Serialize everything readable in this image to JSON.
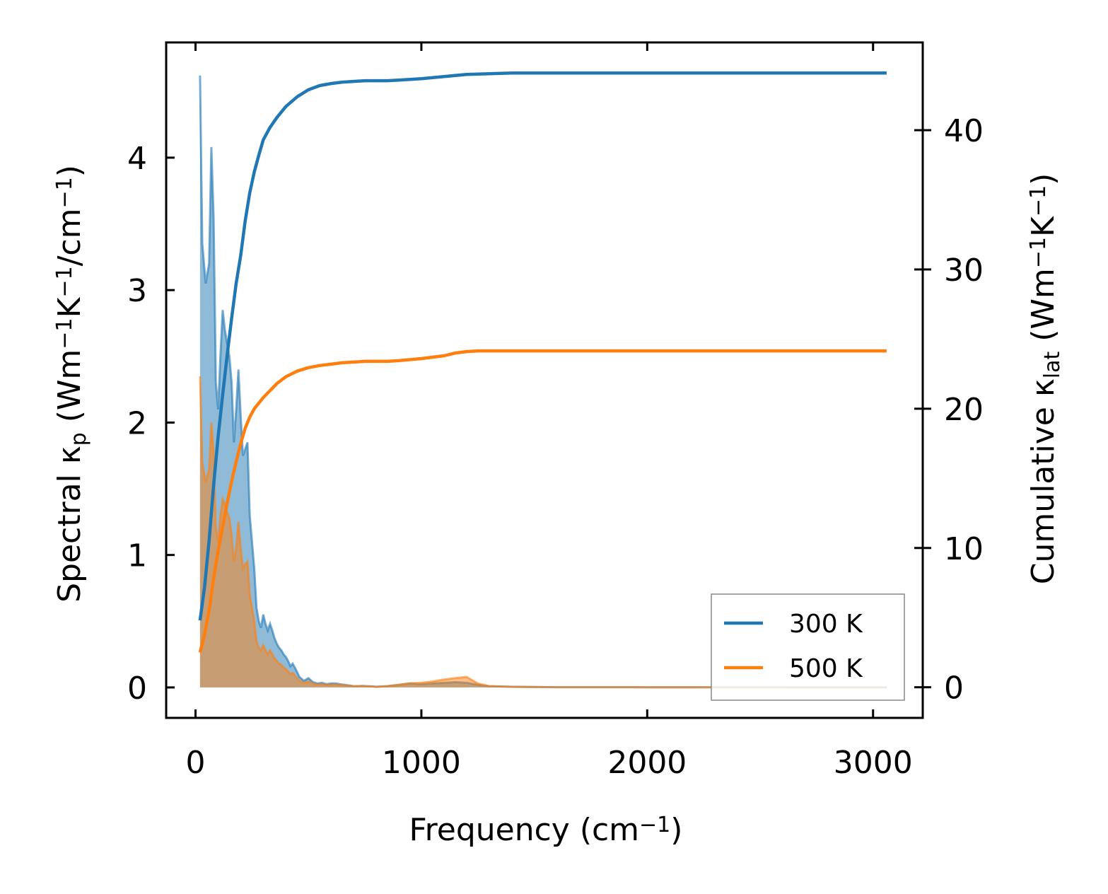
{
  "chart_data": {
    "type": "line",
    "xlabel": {
      "text": "Frequency (cm",
      "sup": "−1",
      "tail": ")"
    },
    "ylabel_left": {
      "parts": [
        {
          "t": "Spectral κ"
        },
        {
          "sub": "p"
        },
        {
          "t": " (Wm"
        },
        {
          "sup": "−1"
        },
        {
          "t": "K"
        },
        {
          "sup": "−1"
        },
        {
          "t": "/cm"
        },
        {
          "sup": "−1"
        },
        {
          "t": ")"
        }
      ]
    },
    "ylabel_right": {
      "parts": [
        {
          "t": "Cumulative κ"
        },
        {
          "sub": "lat"
        },
        {
          "t": " (Wm"
        },
        {
          "sup": "−1"
        },
        {
          "t": "K"
        },
        {
          "sup": "−1"
        },
        {
          "t": ")"
        }
      ]
    },
    "xlim": [
      -130,
      3220
    ],
    "ylim_left": [
      -0.23,
      4.87
    ],
    "ylim_right": [
      -2.2,
      46.3
    ],
    "xticks": [
      0,
      1000,
      2000,
      3000
    ],
    "xtick_labels": [
      "0",
      "1000",
      "2000",
      "3000"
    ],
    "yticks_left": [
      0,
      1,
      2,
      3,
      4
    ],
    "ytick_labels_left": [
      "0",
      "1",
      "2",
      "3",
      "4"
    ],
    "yticks_right": [
      0,
      10,
      20,
      30,
      40
    ],
    "ytick_labels_right": [
      "0",
      "10",
      "20",
      "30",
      "40"
    ],
    "legend": {
      "placement": "lower-right",
      "entries": [
        "300 K",
        "500 K"
      ]
    },
    "grid": false,
    "series": [
      {
        "name": "300 K",
        "color": "#1f77b4",
        "spectral": {
          "x": [
            20,
            30,
            45,
            60,
            70,
            80,
            90,
            100,
            110,
            120,
            130,
            140,
            150,
            160,
            170,
            180,
            190,
            200,
            210,
            220,
            230,
            240,
            250,
            260,
            270,
            280,
            290,
            300,
            310,
            320,
            330,
            340,
            350,
            360,
            370,
            380,
            390,
            400,
            410,
            420,
            430,
            440,
            460,
            480,
            500,
            520,
            540,
            560,
            580,
            600,
            620,
            640,
            660,
            680,
            700,
            720,
            740,
            760,
            780,
            800,
            850,
            900,
            950,
            1000,
            1050,
            1100,
            1150,
            1200,
            1250,
            1300,
            1400,
            1600,
            2000,
            2500,
            3060
          ],
          "y": [
            4.62,
            3.35,
            3.05,
            3.2,
            4.08,
            3.55,
            2.3,
            2.1,
            2.5,
            2.85,
            2.7,
            2.6,
            2.5,
            2.3,
            1.85,
            2.1,
            2.4,
            2.05,
            1.75,
            1.8,
            1.85,
            1.3,
            1.1,
            0.9,
            0.6,
            0.5,
            0.45,
            0.55,
            0.48,
            0.43,
            0.48,
            0.43,
            0.37,
            0.33,
            0.3,
            0.28,
            0.25,
            0.23,
            0.2,
            0.16,
            0.18,
            0.15,
            0.08,
            0.05,
            0.07,
            0.04,
            0.03,
            0.035,
            0.025,
            0.03,
            0.03,
            0.025,
            0.02,
            0.015,
            0.01,
            0.01,
            0.012,
            0.01,
            0.008,
            0.005,
            0.01,
            0.02,
            0.03,
            0.025,
            0.03,
            0.035,
            0.04,
            0.035,
            0.02,
            0.01,
            0.005,
            0.002,
            0.001,
            0.0005,
            0.0
          ]
        },
        "cumulative": {
          "x": [
            20,
            40,
            60,
            80,
            100,
            120,
            140,
            160,
            180,
            200,
            220,
            240,
            260,
            280,
            300,
            330,
            360,
            400,
            450,
            500,
            550,
            600,
            650,
            700,
            750,
            800,
            850,
            900,
            1000,
            1100,
            1200,
            1300,
            1400,
            1600,
            2000,
            2500,
            3060
          ],
          "y": [
            4.8,
            7.2,
            10.5,
            14.5,
            18.0,
            21.0,
            23.8,
            26.5,
            29.0,
            31.0,
            33.5,
            35.5,
            37.0,
            38.2,
            39.3,
            40.2,
            40.9,
            41.7,
            42.4,
            42.9,
            43.2,
            43.35,
            43.45,
            43.5,
            43.55,
            43.55,
            43.55,
            43.6,
            43.7,
            43.85,
            44.0,
            44.05,
            44.1,
            44.1,
            44.1,
            44.1,
            44.1
          ]
        }
      },
      {
        "name": "500 K",
        "color": "#ff7f0e",
        "spectral": {
          "x": [
            20,
            30,
            45,
            60,
            70,
            80,
            90,
            100,
            110,
            120,
            130,
            140,
            150,
            160,
            170,
            180,
            190,
            200,
            210,
            220,
            230,
            240,
            250,
            260,
            270,
            280,
            290,
            300,
            310,
            320,
            330,
            340,
            350,
            360,
            370,
            380,
            390,
            400,
            410,
            420,
            430,
            440,
            460,
            480,
            500,
            520,
            540,
            560,
            580,
            600,
            620,
            640,
            660,
            680,
            700,
            720,
            740,
            760,
            780,
            800,
            850,
            900,
            950,
            1000,
            1050,
            1100,
            1150,
            1200,
            1250,
            1300,
            1400,
            1600,
            2000,
            2500,
            3060
          ],
          "y": [
            2.35,
            1.7,
            1.55,
            1.65,
            2.0,
            1.78,
            1.2,
            1.1,
            1.3,
            1.42,
            1.38,
            1.32,
            1.28,
            1.15,
            0.95,
            1.05,
            1.25,
            1.05,
            0.9,
            0.93,
            0.95,
            0.7,
            0.6,
            0.5,
            0.35,
            0.3,
            0.28,
            0.32,
            0.28,
            0.25,
            0.28,
            0.25,
            0.22,
            0.2,
            0.18,
            0.17,
            0.15,
            0.14,
            0.12,
            0.1,
            0.11,
            0.09,
            0.05,
            0.035,
            0.045,
            0.03,
            0.02,
            0.025,
            0.02,
            0.02,
            0.02,
            0.02,
            0.015,
            0.012,
            0.01,
            0.01,
            0.01,
            0.008,
            0.007,
            0.005,
            0.01,
            0.02,
            0.03,
            0.035,
            0.045,
            0.06,
            0.07,
            0.08,
            0.03,
            0.01,
            0.005,
            0.002,
            0.001,
            0.0005,
            0.0
          ]
        },
        "cumulative": {
          "x": [
            20,
            40,
            60,
            80,
            100,
            120,
            140,
            160,
            180,
            200,
            220,
            240,
            260,
            280,
            300,
            330,
            360,
            400,
            450,
            500,
            550,
            600,
            650,
            700,
            750,
            800,
            850,
            900,
            1000,
            1100,
            1150,
            1200,
            1250,
            1300,
            1400,
            1600,
            2000,
            2500,
            3060
          ],
          "y": [
            2.5,
            3.8,
            5.5,
            7.8,
            9.8,
            11.5,
            13.2,
            14.8,
            16.2,
            17.5,
            18.6,
            19.4,
            20.0,
            20.4,
            20.8,
            21.3,
            21.8,
            22.3,
            22.7,
            22.95,
            23.1,
            23.2,
            23.3,
            23.35,
            23.4,
            23.4,
            23.4,
            23.45,
            23.6,
            23.8,
            24.0,
            24.1,
            24.15,
            24.15,
            24.15,
            24.15,
            24.15,
            24.15,
            24.15
          ]
        }
      }
    ]
  }
}
